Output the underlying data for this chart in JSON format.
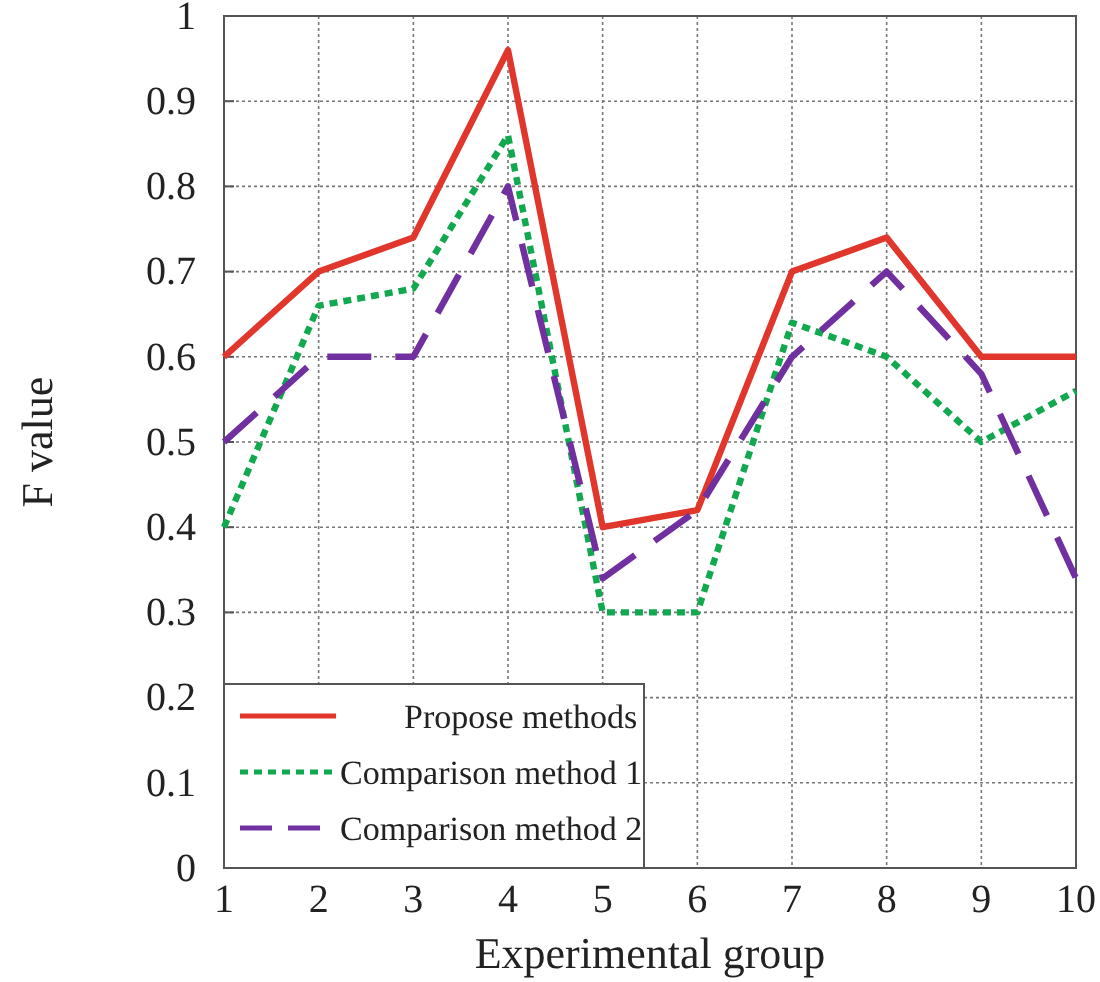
{
  "chart_data": {
    "type": "line",
    "xlabel": "Experimental group",
    "ylabel": "F value",
    "x": [
      1,
      2,
      3,
      4,
      5,
      6,
      7,
      8,
      9,
      10
    ],
    "xlim": [
      1,
      10
    ],
    "xticks": [
      1,
      2,
      3,
      4,
      5,
      6,
      7,
      8,
      9,
      10
    ],
    "ylim": [
      0,
      1
    ],
    "yticks": [
      0,
      0.1,
      0.2,
      0.3,
      0.4,
      0.5,
      0.6,
      0.7,
      0.8,
      0.9,
      1
    ],
    "grid": true,
    "legend": "bottom left",
    "marker": "none",
    "series": [
      {
        "name": "Propose methods",
        "color": "#e0362c",
        "line_style": "solid",
        "values": [
          0.6,
          0.7,
          0.74,
          0.96,
          0.4,
          0.42,
          0.7,
          0.74,
          0.6,
          0.6
        ]
      },
      {
        "name": "Comparison method 1",
        "color": "#12a84f",
        "line_style": "dotted",
        "values": [
          0.4,
          0.66,
          0.68,
          0.86,
          0.3,
          0.3,
          0.64,
          0.6,
          0.5,
          0.56
        ]
      },
      {
        "name": "Comparison method 2",
        "color": "#7030a0",
        "line_style": "dashed",
        "values": [
          0.5,
          0.6,
          0.6,
          0.8,
          0.34,
          0.42,
          0.6,
          0.7,
          0.58,
          0.34
        ]
      }
    ]
  }
}
